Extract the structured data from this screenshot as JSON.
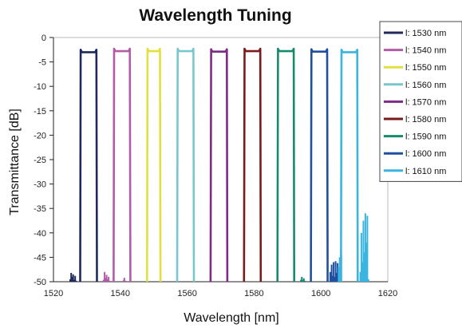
{
  "chart_data": {
    "type": "line",
    "title": "Wavelength Tuning",
    "xlabel": "Wavelength [nm]",
    "ylabel": "Transmittance [dB]",
    "xlim": [
      1520,
      1620
    ],
    "ylim": [
      -50,
      0
    ],
    "x_ticks": [
      1520,
      1540,
      1560,
      1580,
      1600,
      1620
    ],
    "y_ticks": [
      0,
      -5,
      -10,
      -15,
      -20,
      -25,
      -30,
      -35,
      -40,
      -45,
      -50
    ],
    "grid": false,
    "legend_position": "top-right",
    "series": [
      {
        "name": "l: 1530 nm",
        "color": "#1f2a5a",
        "passband": [
          1528,
          1533
        ],
        "peak": -3.0,
        "noise": [
          [
            1525.0,
            -49.5
          ],
          [
            1525.3,
            -48.2
          ],
          [
            1525.6,
            -49.0
          ],
          [
            1525.9,
            -48.5
          ],
          [
            1526.2,
            -49.6
          ],
          [
            1526.5,
            -48.8
          ],
          [
            1526.8,
            -49.8
          ]
        ]
      },
      {
        "name": "l: 1540 nm",
        "color": "#b35aa8",
        "passband": [
          1538,
          1543
        ],
        "peak": -2.8,
        "noise": [
          [
            1535.0,
            -49.6
          ],
          [
            1535.3,
            -48.0
          ],
          [
            1535.6,
            -49.2
          ],
          [
            1535.9,
            -48.6
          ],
          [
            1536.2,
            -49.5
          ],
          [
            1536.5,
            -49.0
          ],
          [
            1536.8,
            -49.8
          ],
          [
            1541.0,
            -49.7
          ],
          [
            1541.2,
            -49.2
          ],
          [
            1541.5,
            -49.8
          ]
        ]
      },
      {
        "name": "l: 1550 nm",
        "color": "#e3df3e",
        "passband": [
          1548,
          1552
        ],
        "peak": -2.8,
        "noise": []
      },
      {
        "name": "l: 1560 nm",
        "color": "#78c6cf",
        "passband": [
          1557,
          1562
        ],
        "peak": -2.8,
        "noise": []
      },
      {
        "name": "l: 1570 nm",
        "color": "#7e2a86",
        "passband": [
          1567,
          1572
        ],
        "peak": -2.9,
        "noise": []
      },
      {
        "name": "l: 1580 nm",
        "color": "#7a1a1a",
        "passband": [
          1577,
          1582
        ],
        "peak": -2.8,
        "noise": []
      },
      {
        "name": "l: 1590 nm",
        "color": "#168a6e",
        "passband": [
          1587,
          1592
        ],
        "peak": -2.8,
        "noise": [
          [
            1594.0,
            -49.6
          ],
          [
            1594.3,
            -49.0
          ],
          [
            1594.6,
            -49.7
          ],
          [
            1594.9,
            -49.3
          ],
          [
            1595.2,
            -49.8
          ]
        ]
      },
      {
        "name": "l: 1600 nm",
        "color": "#1f4fa0",
        "passband": [
          1597,
          1602
        ],
        "peak": -2.9,
        "noise": [
          [
            1602.8,
            -48.0
          ],
          [
            1603.2,
            -46.5
          ],
          [
            1603.5,
            -48.8
          ],
          [
            1603.8,
            -46.0
          ],
          [
            1604.1,
            -49.0
          ],
          [
            1604.4,
            -45.8
          ],
          [
            1604.7,
            -48.2
          ],
          [
            1605.0,
            -46.2
          ]
        ]
      },
      {
        "name": "l: 1610 nm",
        "color": "#3ab4e0",
        "passband": [
          1606,
          1611
        ],
        "peak": -3.0,
        "noise": [
          [
            1605.3,
            -47.0
          ],
          [
            1605.6,
            -45.0
          ],
          [
            1605.9,
            -46.5
          ],
          [
            1606.1,
            -44.5
          ],
          [
            1611.8,
            -48.0
          ],
          [
            1612.1,
            -40.0
          ],
          [
            1612.4,
            -46.0
          ],
          [
            1612.7,
            -37.5
          ],
          [
            1613.0,
            -44.0
          ],
          [
            1613.3,
            -36.0
          ],
          [
            1613.6,
            -42.0
          ],
          [
            1613.9,
            -36.5
          ],
          [
            1614.2,
            -49.5
          ]
        ]
      }
    ]
  }
}
